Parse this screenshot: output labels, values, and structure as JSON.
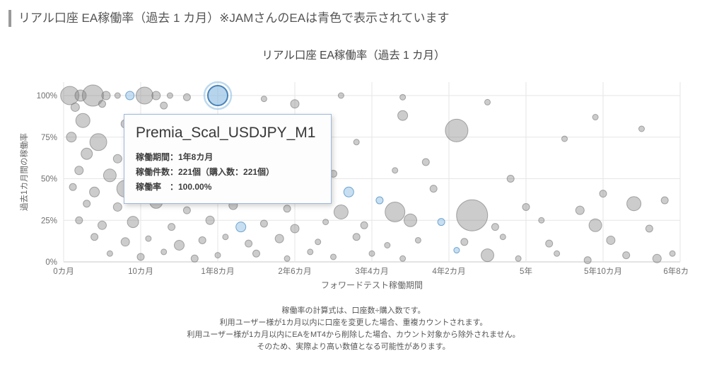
{
  "page": {
    "heading": "リアル口座 EA稼働率（過去 1 カ月）※JAMさんのEAは青色で表示されています"
  },
  "chart": {
    "title": "リアル口座 EA稼働率（過去 1 カ月）",
    "xlabel": "フォワードテスト稼働期間",
    "ylabel": "過去1カ月間の稼働率"
  },
  "tooltip": {
    "title": "Premia_Scal_USDJPY_M1",
    "rows": [
      "稼働期間：1年8カ月",
      "稼働件数：221個（購入数：221個）",
      "稼働率　：100.00%"
    ]
  },
  "footnotes": [
    "稼働率の計算式は、口座数÷購入数です。",
    "利用ユーザー様が1カ月以内に口座を変更した場合、重複カウントされます。",
    "利用ユーザー様が1カ月以内にEAをMT4から削除した場合、カウント対象から除外されません。",
    "そのため、実際より高い数値となる可能性があります。"
  ],
  "chart_data": {
    "type": "scatter",
    "subtype": "bubble",
    "title": "リアル口座 EA稼働率（過去 1 カ月）",
    "xlabel": "フォワードテスト稼働期間",
    "ylabel": "過去1カ月間の稼働率",
    "xlim": [
      0,
      80
    ],
    "ylim": [
      0,
      100
    ],
    "grid": true,
    "x_tick_values": [
      0,
      10,
      20,
      30,
      40,
      50,
      60,
      70,
      80
    ],
    "x_tick_labels": [
      "0カ月",
      "10カ月",
      "1年8カ月",
      "2年6カ月",
      "3年4カ月",
      "4年2カ月",
      "5年",
      "5年10カ月",
      "6年8カ月"
    ],
    "y_tick_values": [
      0,
      25,
      50,
      75,
      100
    ],
    "y_tick_labels": [
      "0%",
      "25%",
      "50%",
      "75%",
      "100%"
    ],
    "colors": {
      "bubble_gray": "#808080",
      "bubble_blue": "#86b9e0",
      "selected_stroke": "#4a84b8",
      "gridline": "#e6e6e6"
    },
    "selected_point": {
      "x_months": 20,
      "y_percent": 100,
      "label": "Premia_Scal_USDJPY_M1"
    },
    "point_format": [
      "x_months",
      "y_percent",
      "radius_px",
      "color: g=gray b=blue s=selected-blue"
    ],
    "points": [
      [
        0.8,
        100,
        13,
        "g"
      ],
      [
        2.2,
        100,
        8,
        "g"
      ],
      [
        3.8,
        100,
        15,
        "g"
      ],
      [
        5.5,
        100,
        6,
        "g"
      ],
      [
        7,
        100,
        4,
        "g"
      ],
      [
        8.6,
        100,
        6,
        "b"
      ],
      [
        10.5,
        100,
        12,
        "g"
      ],
      [
        12,
        100,
        6,
        "g"
      ],
      [
        13.8,
        100,
        4,
        "g"
      ],
      [
        16,
        99,
        5,
        "g"
      ],
      [
        20,
        100,
        14,
        "s"
      ],
      [
        26,
        98,
        4,
        "g"
      ],
      [
        36,
        100,
        4,
        "g"
      ],
      [
        44,
        99,
        4,
        "g"
      ],
      [
        1.5,
        93,
        6,
        "g"
      ],
      [
        5,
        95,
        5,
        "g"
      ],
      [
        13,
        94,
        5,
        "g"
      ],
      [
        30,
        95,
        6,
        "g"
      ],
      [
        44,
        88,
        7,
        "g"
      ],
      [
        55,
        96,
        4,
        "g"
      ],
      [
        69,
        87,
        4,
        "g"
      ],
      [
        2.5,
        85,
        10,
        "g"
      ],
      [
        8,
        83,
        6,
        "g"
      ],
      [
        16,
        82,
        5,
        "g"
      ],
      [
        23,
        84,
        4,
        "g"
      ],
      [
        34,
        80,
        5,
        "g"
      ],
      [
        51,
        79,
        16,
        "g"
      ],
      [
        75,
        80,
        4,
        "g"
      ],
      [
        1,
        75,
        7,
        "g"
      ],
      [
        4.5,
        72,
        12,
        "g"
      ],
      [
        9,
        74,
        5,
        "g"
      ],
      [
        14,
        70,
        6,
        "g"
      ],
      [
        20,
        73,
        4,
        "g"
      ],
      [
        28,
        71,
        5,
        "g"
      ],
      [
        38,
        72,
        4,
        "g"
      ],
      [
        65,
        74,
        4,
        "g"
      ],
      [
        3,
        65,
        8,
        "g"
      ],
      [
        7,
        62,
        6,
        "g"
      ],
      [
        11,
        64,
        10,
        "g"
      ],
      [
        17,
        60,
        5,
        "g"
      ],
      [
        24,
        63,
        4,
        "g"
      ],
      [
        31,
        61,
        6,
        "g"
      ],
      [
        47,
        60,
        5,
        "g"
      ],
      [
        2,
        55,
        6,
        "g"
      ],
      [
        6,
        52,
        9,
        "g"
      ],
      [
        10,
        55,
        5,
        "g"
      ],
      [
        15,
        51,
        7,
        "g"
      ],
      [
        21,
        54,
        4,
        "g"
      ],
      [
        27,
        50,
        9,
        "g"
      ],
      [
        35,
        53,
        5,
        "g"
      ],
      [
        43,
        55,
        4,
        "g"
      ],
      [
        58,
        50,
        5,
        "g"
      ],
      [
        1.2,
        45,
        5,
        "g"
      ],
      [
        4,
        42,
        7,
        "g"
      ],
      [
        8,
        44,
        12,
        "g"
      ],
      [
        13,
        40,
        6,
        "g"
      ],
      [
        18,
        43,
        5,
        "g"
      ],
      [
        25,
        41,
        8,
        "g"
      ],
      [
        32,
        45,
        4,
        "g"
      ],
      [
        37,
        42,
        7,
        "b"
      ],
      [
        48,
        44,
        5,
        "g"
      ],
      [
        70,
        41,
        5,
        "g"
      ],
      [
        3,
        35,
        5,
        "g"
      ],
      [
        7,
        33,
        6,
        "g"
      ],
      [
        12,
        36,
        9,
        "g"
      ],
      [
        16,
        31,
        5,
        "g"
      ],
      [
        22,
        34,
        6,
        "g"
      ],
      [
        29,
        32,
        5,
        "g"
      ],
      [
        36,
        30,
        10,
        "g"
      ],
      [
        41,
        37,
        5,
        "b"
      ],
      [
        43,
        30,
        14,
        "g"
      ],
      [
        53,
        28,
        22,
        "g"
      ],
      [
        60,
        33,
        5,
        "g"
      ],
      [
        67,
        31,
        6,
        "g"
      ],
      [
        74,
        35,
        10,
        "g"
      ],
      [
        78,
        37,
        5,
        "g"
      ],
      [
        2,
        25,
        5,
        "g"
      ],
      [
        5,
        22,
        6,
        "g"
      ],
      [
        9,
        24,
        8,
        "g"
      ],
      [
        14,
        21,
        5,
        "g"
      ],
      [
        19,
        25,
        6,
        "g"
      ],
      [
        23,
        21,
        7,
        "b"
      ],
      [
        26,
        23,
        5,
        "g"
      ],
      [
        30,
        20,
        6,
        "g"
      ],
      [
        34,
        24,
        4,
        "g"
      ],
      [
        39,
        22,
        5,
        "g"
      ],
      [
        45,
        25,
        9,
        "g"
      ],
      [
        49,
        24,
        5,
        "b"
      ],
      [
        56,
        21,
        5,
        "g"
      ],
      [
        62,
        25,
        4,
        "g"
      ],
      [
        69,
        22,
        9,
        "g"
      ],
      [
        76,
        20,
        5,
        "g"
      ],
      [
        4,
        15,
        5,
        "g"
      ],
      [
        8,
        12,
        6,
        "g"
      ],
      [
        11,
        14,
        4,
        "g"
      ],
      [
        15,
        10,
        7,
        "g"
      ],
      [
        18,
        13,
        5,
        "g"
      ],
      [
        21,
        15,
        4,
        "g"
      ],
      [
        24,
        11,
        5,
        "g"
      ],
      [
        28,
        14,
        6,
        "g"
      ],
      [
        33,
        12,
        4,
        "g"
      ],
      [
        38,
        15,
        5,
        "g"
      ],
      [
        42,
        10,
        4,
        "g"
      ],
      [
        46,
        13,
        4,
        "g"
      ],
      [
        52,
        12,
        5,
        "g"
      ],
      [
        57,
        15,
        4,
        "g"
      ],
      [
        63,
        11,
        5,
        "g"
      ],
      [
        71,
        13,
        6,
        "g"
      ],
      [
        6,
        5,
        4,
        "g"
      ],
      [
        10,
        3,
        5,
        "g"
      ],
      [
        13,
        6,
        4,
        "g"
      ],
      [
        17,
        2,
        5,
        "g"
      ],
      [
        20,
        4,
        4,
        "g"
      ],
      [
        25,
        5,
        5,
        "g"
      ],
      [
        29,
        2,
        4,
        "g"
      ],
      [
        32,
        6,
        4,
        "g"
      ],
      [
        35,
        3,
        4,
        "g"
      ],
      [
        40,
        5,
        4,
        "g"
      ],
      [
        44,
        2,
        4,
        "g"
      ],
      [
        51,
        7,
        4,
        "b"
      ],
      [
        55,
        4,
        9,
        "g"
      ],
      [
        59,
        2,
        4,
        "g"
      ],
      [
        64,
        5,
        4,
        "g"
      ],
      [
        68,
        1,
        5,
        "g"
      ],
      [
        73,
        4,
        5,
        "g"
      ],
      [
        77,
        2,
        6,
        "g"
      ],
      [
        79,
        5,
        4,
        "g"
      ]
    ]
  }
}
